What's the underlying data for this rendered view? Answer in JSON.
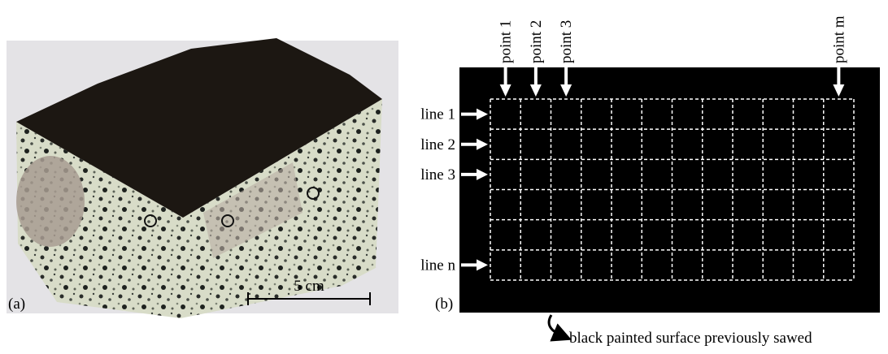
{
  "panel_a": {
    "label": "(a)",
    "scale_bar": "5 cm"
  },
  "panel_b": {
    "label": "(b)",
    "points": [
      "point 1",
      "point 2",
      "point 3",
      "point m"
    ],
    "lines": [
      "line 1",
      "line 2",
      "line 3",
      "line n"
    ],
    "caption": "black painted surface previously sawed"
  }
}
